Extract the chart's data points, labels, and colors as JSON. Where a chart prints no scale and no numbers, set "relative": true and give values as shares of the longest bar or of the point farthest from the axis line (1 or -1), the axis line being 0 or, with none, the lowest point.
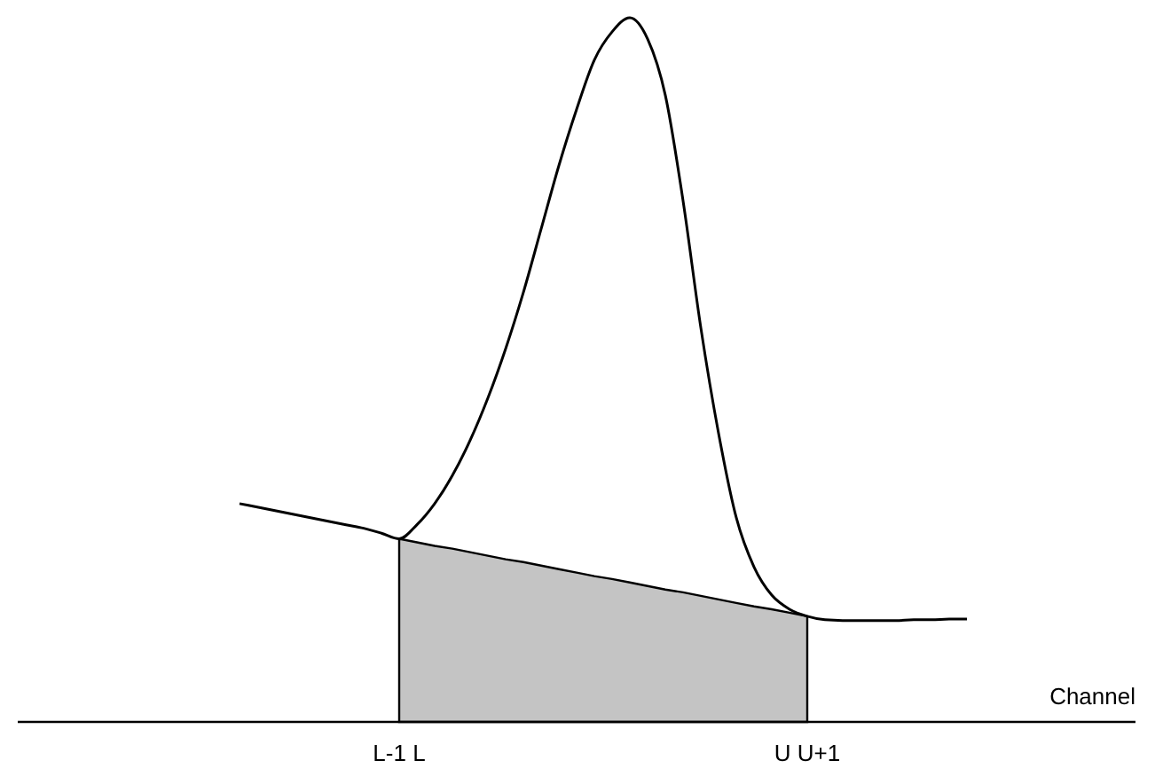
{
  "chart_data": {
    "type": "line",
    "relative": true,
    "xlabel": "Channel",
    "categories": [
      null,
      null,
      null,
      null,
      null,
      null,
      null,
      null,
      null,
      "L-1 L",
      null,
      null,
      null,
      null,
      null,
      null,
      null,
      null,
      null,
      null,
      null,
      null,
      null,
      null,
      null,
      null,
      null,
      null,
      null,
      null,
      null,
      null,
      "U U+1",
      null,
      null,
      null,
      null,
      null,
      null,
      null,
      null,
      null
    ],
    "series": [
      {
        "type": "area",
        "color": "#c4c4c4",
        "values": [
          null,
          null,
          null,
          null,
          null,
          null,
          null,
          null,
          null,
          0.26,
          0.255,
          0.25,
          0.246,
          0.241,
          0.236,
          0.231,
          0.227,
          0.222,
          0.217,
          0.212,
          0.207,
          0.203,
          0.198,
          0.193,
          0.188,
          0.184,
          0.179,
          0.174,
          0.169,
          0.164,
          0.16,
          0.155,
          0.15,
          null,
          null,
          null,
          null,
          null,
          null,
          null,
          null,
          null
        ]
      },
      {
        "color": "#000000",
        "values": [
          0.31,
          0.305,
          0.3,
          0.295,
          0.29,
          0.285,
          0.28,
          0.275,
          0.268,
          0.26,
          0.28,
          0.31,
          0.35,
          0.4,
          0.46,
          0.53,
          0.61,
          0.7,
          0.79,
          0.87,
          0.94,
          0.98,
          1,
          0.97,
          0.89,
          0.74,
          0.56,
          0.41,
          0.29,
          0.22,
          0.18,
          0.16,
          0.15,
          0.145,
          0.144,
          0.144,
          0.144,
          0.144,
          0.145,
          0.145,
          0.146,
          0.146
        ]
      }
    ]
  }
}
